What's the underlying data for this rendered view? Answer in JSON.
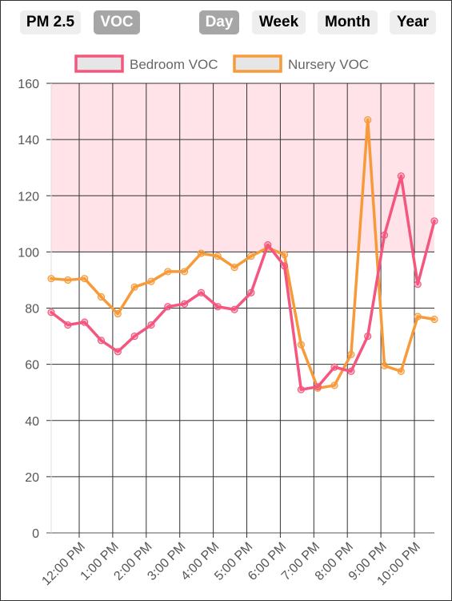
{
  "toolbar": {
    "metric_buttons": [
      {
        "label": "PM 2.5",
        "active": false
      },
      {
        "label": "VOC",
        "active": true
      }
    ],
    "range_buttons": [
      {
        "label": "Day",
        "active": true
      },
      {
        "label": "Week",
        "active": false
      },
      {
        "label": "Month",
        "active": false
      },
      {
        "label": "Year",
        "active": false
      }
    ]
  },
  "colors": {
    "bedroom": "#f4567f",
    "nursery": "#f79a3a",
    "threshold_band": "#ffe3e8",
    "active_button": "#a6a6a6",
    "inactive_button": "#eeeeee"
  },
  "chart_data": {
    "type": "line",
    "ylim": [
      0,
      160
    ],
    "yticks": [
      "0",
      "20",
      "40",
      "60",
      "80",
      "100",
      "120",
      "140",
      "160"
    ],
    "xtick_labels": [
      "12:00 PM",
      "1:00 PM",
      "2:00 PM",
      "3:00 PM",
      "4:00 PM",
      "5:00 PM",
      "6:00 PM",
      "7:00 PM",
      "8:00 PM",
      "9:00 PM",
      "10:00 PM"
    ],
    "threshold_band": [
      100,
      160
    ],
    "legend": [
      "Bedroom VOC",
      "Nursery VOC"
    ],
    "series": [
      {
        "name": "Bedroom VOC",
        "values": [
          78.5,
          74,
          75,
          68.5,
          64.5,
          70,
          74,
          80.5,
          81.5,
          85.5,
          80.5,
          79.5,
          85.5,
          102.5,
          95,
          51,
          52,
          59,
          57.5,
          70,
          106,
          127,
          88.5,
          111
        ]
      },
      {
        "name": "Nursery VOC",
        "values": [
          90.5,
          90,
          90.5,
          84,
          78,
          87.5,
          89.5,
          93,
          93,
          99.5,
          98.5,
          94.5,
          98.5,
          101.5,
          99,
          67,
          51.5,
          52.5,
          63.5,
          147,
          59.5,
          57.5,
          77,
          76
        ]
      }
    ]
  }
}
